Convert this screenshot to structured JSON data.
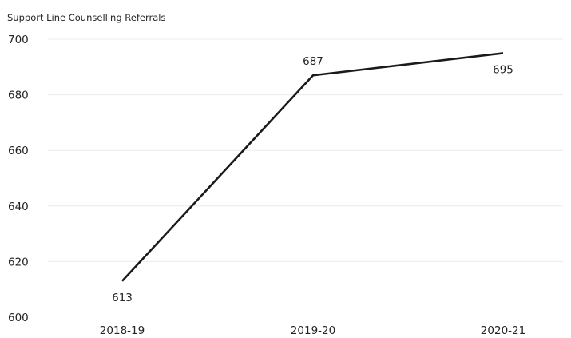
{
  "chart_data": {
    "type": "line",
    "title": "Support Line Counselling Referrals",
    "categories": [
      "2018-19",
      "2019-20",
      "2020-21"
    ],
    "series": [
      {
        "values": [
          613,
          687,
          695
        ],
        "color": "#1a1a1a"
      }
    ],
    "ylim": [
      600,
      700
    ],
    "yticks": [
      600,
      620,
      640,
      660,
      680,
      700
    ],
    "grid": true,
    "data_labels": [
      "613",
      "687",
      "695"
    ]
  }
}
